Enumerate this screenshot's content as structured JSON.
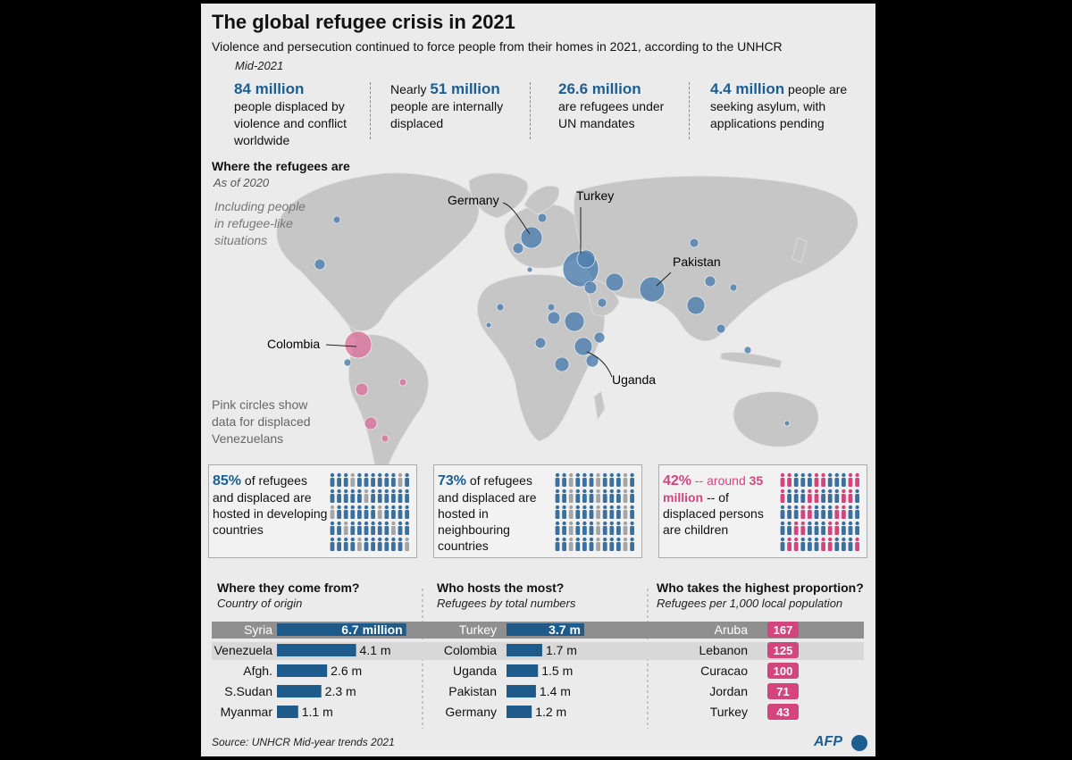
{
  "title": "The global refugee crisis in 2021",
  "subtitle": "Violence and persecution continued to force people from their homes in 2021, according to the UNHCR",
  "period": "Mid-2021",
  "stats": [
    {
      "pre": "",
      "value": "84 million",
      "text": "people displaced by violence and conflict worldwide"
    },
    {
      "pre": "Nearly",
      "value": "51 million",
      "text": "people are internally displaced"
    },
    {
      "pre": "",
      "value": "26.6 million",
      "text": "are refugees under UN mandates"
    },
    {
      "pre": "",
      "value": "4.4 million",
      "text": "people are seeking asylum, with applications pending"
    }
  ],
  "map": {
    "heading": "Where the refugees are",
    "as_of": "As of 2020",
    "including_note": "Including people in refugee-like situations",
    "pink_note": "Pink circles show data for displaced Venezuelans",
    "labels": {
      "germany": "Germany",
      "turkey": "Turkey",
      "pakistan": "Pakistan",
      "colombia": "Colombia",
      "uganda": "Uganda"
    },
    "colors": {
      "land": "#c6c6c6",
      "refugee": "#4f7fae",
      "venezuelan": "#d9759d"
    }
  },
  "facts": [
    {
      "pct": "85%",
      "text": "of refugees and displaced are hosted in developing countries"
    },
    {
      "pct": "73%",
      "text": "of refugees and displaced are hosted in neighbouring countries"
    },
    {
      "pct": "42%",
      "text1": "-- around",
      "highlight": "35 million",
      "text2": "-- of displaced persons are children"
    }
  ],
  "chart_data": [
    {
      "type": "bar",
      "title": "Where they come from?",
      "subtitle": "Country of origin",
      "categories": [
        "Syria",
        "Venezuela",
        "Afgh.",
        "S.Sudan",
        "Myanmar"
      ],
      "values": [
        6.7,
        4.1,
        2.6,
        2.3,
        1.1
      ],
      "value_labels": [
        "6.7 million",
        "4.1 m",
        "2.6 m",
        "2.3 m",
        "1.1 m"
      ],
      "unit": "million",
      "color": "#1e5b8a"
    },
    {
      "type": "bar",
      "title": "Who hosts the most?",
      "subtitle": "Refugees by total numbers",
      "categories": [
        "Turkey",
        "Colombia",
        "Uganda",
        "Pakistan",
        "Germany"
      ],
      "values": [
        3.7,
        1.7,
        1.5,
        1.4,
        1.2
      ],
      "value_labels": [
        "3.7 m",
        "1.7 m",
        "1.5 m",
        "1.4 m",
        "1.2 m"
      ],
      "unit": "million",
      "color": "#1e5b8a"
    },
    {
      "type": "table",
      "title": "Who takes the highest proportion?",
      "subtitle": "Refugees per 1,000 local population",
      "categories": [
        "Aruba",
        "Lebanon",
        "Curacao",
        "Jordan",
        "Turkey"
      ],
      "values": [
        167,
        125,
        100,
        71,
        43
      ],
      "color": "#d4457e"
    }
  ],
  "source": "Source: UNHCR Mid-year trends 2021",
  "logo_text": "AFP"
}
